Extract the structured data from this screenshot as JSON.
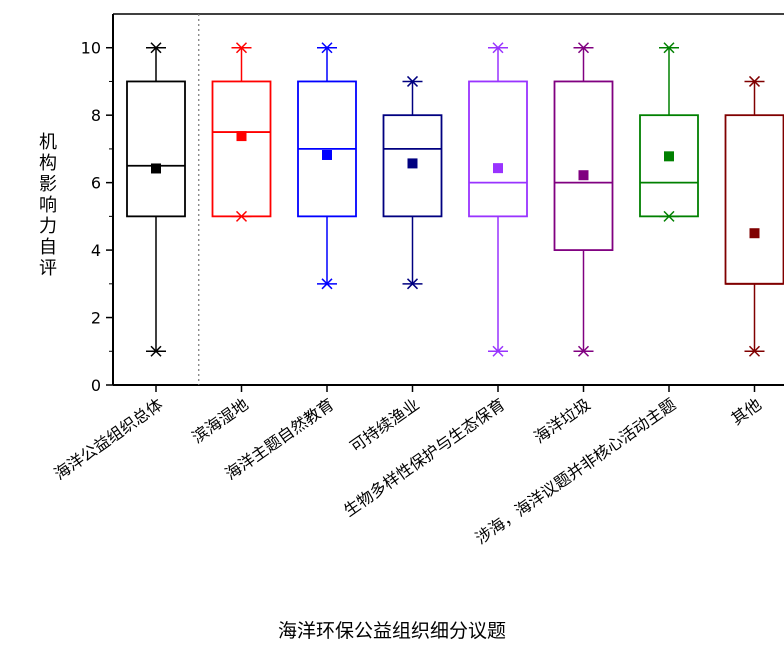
{
  "chart_data": {
    "type": "box",
    "ylabel": "机构影响力自评",
    "xlabel": "海洋环保公益组织细分议题",
    "ylim": [
      0,
      11
    ],
    "yticks": [
      0,
      2,
      4,
      6,
      8,
      10
    ],
    "ytick_labels": [
      "0",
      "2",
      "4",
      "6",
      "8",
      "10"
    ],
    "grid": false,
    "separator_after_index": 0,
    "series": [
      {
        "name": "海洋公益组织总体",
        "color": "#000000",
        "min": 1,
        "q1": 5,
        "median": 6.5,
        "q3": 9,
        "max": 10,
        "mean": 6.42
      },
      {
        "name": "滨海湿地",
        "color": "#ff0000",
        "min": 5,
        "q1": 5,
        "median": 7.5,
        "q3": 9,
        "max": 10,
        "mean": 7.38
      },
      {
        "name": "海洋主题自然教育",
        "color": "#0000ff",
        "min": 3,
        "q1": 5,
        "median": 7,
        "q3": 9,
        "max": 10,
        "mean": 6.82
      },
      {
        "name": "可持续渔业",
        "color": "#000080",
        "min": 3,
        "q1": 5,
        "median": 7,
        "q3": 8,
        "max": 9,
        "mean": 6.57
      },
      {
        "name": "生物多样性保护与生态保育",
        "color": "#9933ff",
        "min": 1,
        "q1": 5,
        "median": 6,
        "q3": 9,
        "max": 10,
        "mean": 6.43
      },
      {
        "name": "海洋垃圾",
        "color": "#800080",
        "min": 1,
        "q1": 4,
        "median": 6,
        "q3": 9,
        "max": 10,
        "mean": 6.22
      },
      {
        "name": "涉海，海洋议题并非核心活动主题",
        "color": "#008000",
        "min": 5,
        "q1": 5,
        "median": 6,
        "q3": 8,
        "max": 10,
        "mean": 6.78
      },
      {
        "name": "其他",
        "color": "#800000",
        "min": 1,
        "q1": 3,
        "median": 3,
        "q3": 8,
        "max": 9,
        "mean": 4.5
      }
    ]
  }
}
